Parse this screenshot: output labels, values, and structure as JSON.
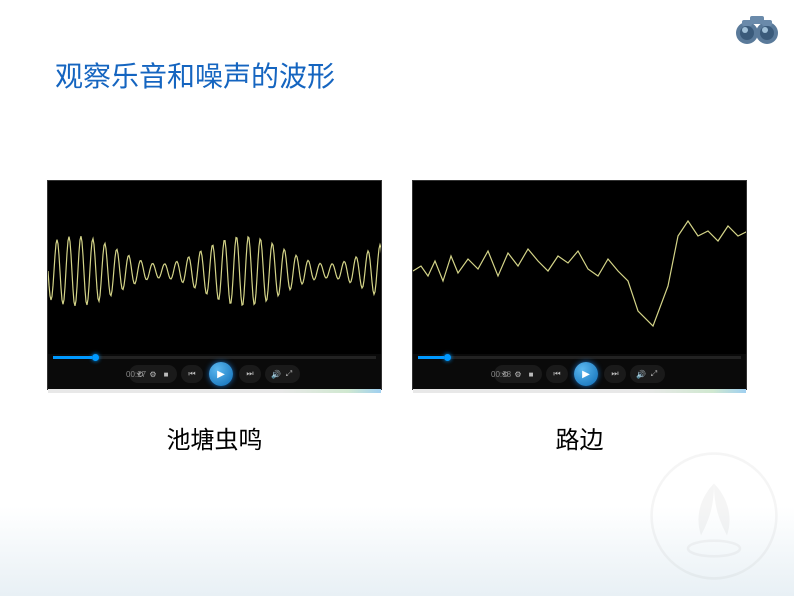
{
  "title": "观察乐音和噪声的波形",
  "binoculars_colors": {
    "body": "#5a7a9a",
    "lens": "#3a5a7a",
    "highlight": "#a0c0d8"
  },
  "panels": [
    {
      "caption": "池塘虫鸣",
      "time_label": "00:27",
      "progress_percent": 12,
      "waveform": {
        "type": "regular-wave",
        "color": "#d4d488",
        "stroke_width": 1.2,
        "amplitude_base": 35,
        "amplitude_variation": 15,
        "frequency": 28,
        "background": "#000000"
      }
    },
    {
      "caption": "路边",
      "time_label": "00:38",
      "progress_percent": 8,
      "waveform": {
        "type": "irregular-noise",
        "color": "#d4d488",
        "stroke_width": 1.2,
        "background": "#000000",
        "points": [
          [
            0,
            90
          ],
          [
            8,
            85
          ],
          [
            15,
            95
          ],
          [
            22,
            80
          ],
          [
            30,
            100
          ],
          [
            38,
            75
          ],
          [
            45,
            92
          ],
          [
            55,
            78
          ],
          [
            65,
            88
          ],
          [
            75,
            70
          ],
          [
            85,
            95
          ],
          [
            95,
            72
          ],
          [
            105,
            85
          ],
          [
            115,
            68
          ],
          [
            125,
            80
          ],
          [
            135,
            90
          ],
          [
            145,
            75
          ],
          [
            155,
            82
          ],
          [
            165,
            70
          ],
          [
            175,
            88
          ],
          [
            185,
            95
          ],
          [
            195,
            78
          ],
          [
            205,
            90
          ],
          [
            215,
            100
          ],
          [
            225,
            130
          ],
          [
            240,
            145
          ],
          [
            255,
            105
          ],
          [
            265,
            55
          ],
          [
            275,
            40
          ],
          [
            285,
            55
          ],
          [
            295,
            50
          ],
          [
            305,
            60
          ],
          [
            315,
            45
          ],
          [
            325,
            55
          ],
          [
            335,
            50
          ]
        ]
      }
    }
  ],
  "play_button_color": "#1e90ff",
  "watermark_color": "#888888"
}
